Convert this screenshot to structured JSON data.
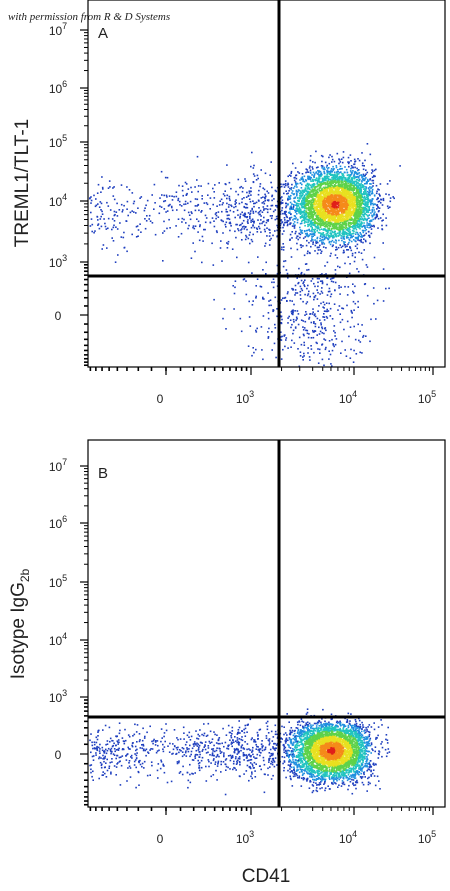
{
  "credit": "with permission from R & D Systems",
  "chart_data": [
    {
      "type": "scatter",
      "panel_label": "A",
      "ylabel": "TREML1/TLT-1",
      "xlabel": "",
      "x_ticks": [
        {
          "base": "0",
          "exp": ""
        },
        {
          "base": "10",
          "exp": "3"
        },
        {
          "base": "10",
          "exp": "4"
        },
        {
          "base": "10",
          "exp": "5"
        }
      ],
      "y_ticks": [
        {
          "base": "0",
          "exp": ""
        },
        {
          "base": "10",
          "exp": "3"
        },
        {
          "base": "10",
          "exp": "4"
        },
        {
          "base": "10",
          "exp": "5"
        },
        {
          "base": "10",
          "exp": "6"
        },
        {
          "base": "10",
          "exp": "7"
        }
      ],
      "scale": "biexponential",
      "gate": {
        "x": 2000,
        "y": 600
      },
      "populations": [
        {
          "center": [
            6500,
            9000
          ],
          "spread_log": [
            0.21,
            0.3
          ],
          "count": 4200,
          "color_mode": "density"
        },
        {
          "center": [
            350,
            7000
          ],
          "spread_log": [
            0.75,
            0.3
          ],
          "count": 650,
          "color_mode": "sparse"
        },
        {
          "center": [
            3500,
            60
          ],
          "spread_log": [
            0.3,
            1.1
          ],
          "count": 450,
          "color_mode": "sparse"
        }
      ]
    },
    {
      "type": "scatter",
      "panel_label": "B",
      "ylabel": "Isotype IgG",
      "ylabel_sub": "2b",
      "xlabel": "CD41",
      "x_ticks": [
        {
          "base": "0",
          "exp": ""
        },
        {
          "base": "10",
          "exp": "3"
        },
        {
          "base": "10",
          "exp": "4"
        },
        {
          "base": "10",
          "exp": "5"
        }
      ],
      "y_ticks": [
        {
          "base": "0",
          "exp": ""
        },
        {
          "base": "10",
          "exp": "3"
        },
        {
          "base": "10",
          "exp": "4"
        },
        {
          "base": "10",
          "exp": "5"
        },
        {
          "base": "10",
          "exp": "6"
        },
        {
          "base": "10",
          "exp": "7"
        }
      ],
      "scale": "biexponential",
      "gate": {
        "x": 2000,
        "y": 600
      },
      "populations": [
        {
          "center": [
            6000,
            40
          ],
          "spread_log": [
            0.2,
            0.45
          ],
          "count": 3800,
          "color_mode": "density"
        },
        {
          "center": [
            150,
            40
          ],
          "spread_log": [
            1.0,
            0.4
          ],
          "count": 900,
          "color_mode": "sparse"
        }
      ]
    }
  ],
  "colors": {
    "axis": "#000000",
    "gate": "#000000",
    "density_scale": [
      "#1f3fbf",
      "#1f8fdf",
      "#21c4c0",
      "#5ed24a",
      "#e8e020",
      "#f58a1a",
      "#e0201a"
    ]
  }
}
